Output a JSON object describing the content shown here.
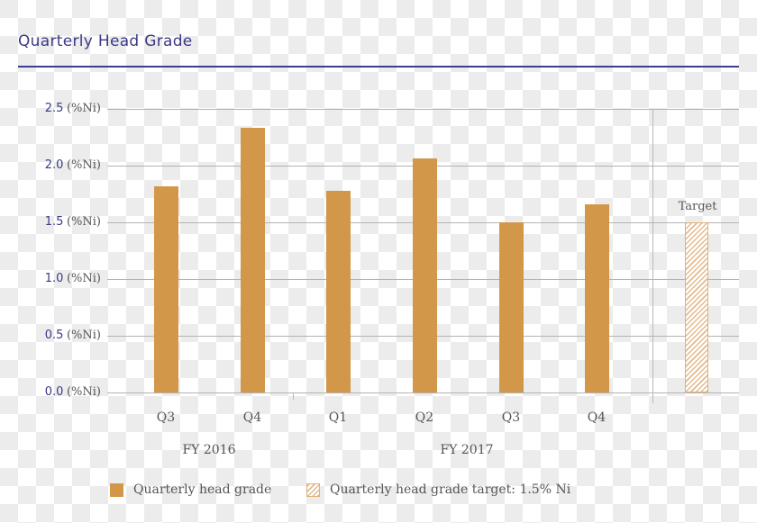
{
  "header": {
    "title": "Quarterly Head Grade",
    "accent_color": "#3a3f8f"
  },
  "y_axis": {
    "ticks": [
      {
        "value": "2.5",
        "unit": "(%Ni)"
      },
      {
        "value": "2.0",
        "unit": "(%Ni)"
      },
      {
        "value": "1.5",
        "unit": "(%Ni)"
      },
      {
        "value": "1.0",
        "unit": "(%Ni)"
      },
      {
        "value": "0.5",
        "unit": "(%Ni)"
      },
      {
        "value": "0.0",
        "unit": "(%Ni)"
      }
    ]
  },
  "x_axis": {
    "quarters": [
      "Q3",
      "Q4",
      "Q1",
      "Q2",
      "Q3",
      "Q4"
    ],
    "groups": [
      "FY 2016",
      "FY 2017"
    ]
  },
  "target": {
    "label": "Target",
    "value": 1.5
  },
  "legend": {
    "items": [
      {
        "label": "Quarterly head grade",
        "style": "solid",
        "color": "#d3974a"
      },
      {
        "label": "Quarterly head grade target: 1.5% Ni",
        "style": "hatched",
        "color": "#e4b98a"
      }
    ]
  },
  "chart_data": {
    "type": "bar",
    "title": "Quarterly Head Grade",
    "xlabel": "",
    "ylabel": "%Ni",
    "ylim": [
      0,
      2.5
    ],
    "yticks": [
      0.0,
      0.5,
      1.0,
      1.5,
      2.0,
      2.5
    ],
    "grid": true,
    "categories": [
      "FY 2016 Q3",
      "FY 2016 Q4",
      "FY 2017 Q1",
      "FY 2017 Q2",
      "FY 2017 Q3",
      "FY 2017 Q4",
      "Target"
    ],
    "series": [
      {
        "name": "Quarterly head grade",
        "values": [
          1.82,
          2.33,
          1.78,
          2.06,
          1.5,
          1.66,
          null
        ],
        "color": "#d3974a"
      },
      {
        "name": "Quarterly head grade target: 1.5% Ni",
        "values": [
          null,
          null,
          null,
          null,
          null,
          null,
          1.5
        ],
        "pattern": "hatched"
      }
    ],
    "legend_position": "bottom"
  }
}
